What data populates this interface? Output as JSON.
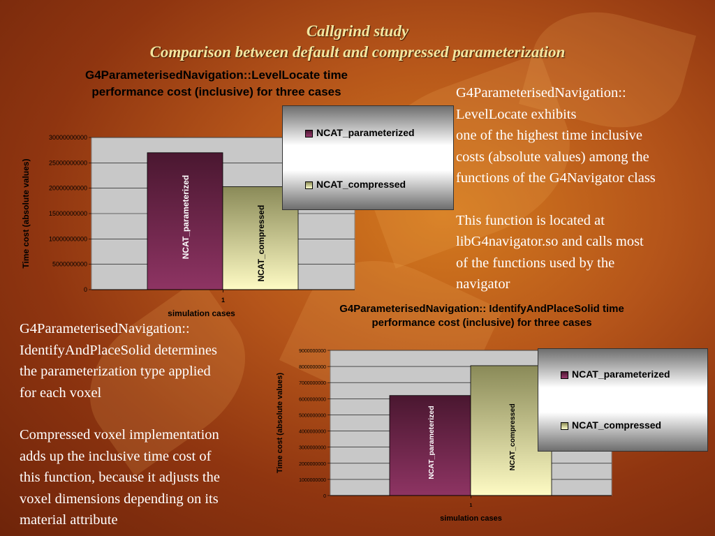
{
  "slide": {
    "title_line1": "Callgrind study",
    "title_line2": "Comparison between default and compressed parameterization",
    "right_text": {
      "p1": [
        "G4ParameterisedNavigation::",
        "LevelLocate exhibits",
        "one of the highest time inclusive",
        "costs (absolute values) among the",
        "functions of the G4Navigator class"
      ],
      "p2": [
        "This function is located at",
        "libG4navigator.so and calls most",
        "of the functions used by the",
        "navigator"
      ]
    },
    "left_text": {
      "p1": [
        "G4ParameterisedNavigation::",
        "IdentifyAndPlaceSolid determines",
        "the parameterization type applied",
        "for each voxel"
      ],
      "p2": [
        "Compressed voxel implementation",
        "adds up the inclusive time cost of",
        "this function, because it adjusts the",
        "voxel dimensions depending on its",
        "material attribute"
      ]
    }
  },
  "colors": {
    "parameterized": "#8e3463",
    "compressed": "#fefbc4",
    "plot_bg": "#c8c8c8"
  },
  "chart_data": [
    {
      "type": "bar",
      "title_line1": "G4ParameterisedNavigation::LevelLocate time",
      "title_line2": "performance cost (inclusive) for three cases",
      "xlabel": "simulation cases",
      "ylabel": "Time cost (absolute values)",
      "categories": [
        "1"
      ],
      "ylim": [
        0,
        30000000000
      ],
      "yticks": [
        0,
        5000000000,
        10000000000,
        15000000000,
        20000000000,
        25000000000,
        30000000000
      ],
      "series": [
        {
          "name": "NCAT_parameterized",
          "values": [
            27000000000
          ]
        },
        {
          "name": "NCAT_compressed",
          "values": [
            20300000000
          ]
        }
      ],
      "legend": "top-right",
      "grid": true
    },
    {
      "type": "bar",
      "title_line1": "G4ParameterisedNavigation:: IdentifyAndPlaceSolid time",
      "title_line2": "performance cost (inclusive) for three cases",
      "xlabel": "simulation cases",
      "ylabel": "Time cost (absolute values)",
      "categories": [
        "1"
      ],
      "ylim": [
        0,
        9000000000
      ],
      "yticks": [
        0,
        1000000000,
        2000000000,
        3000000000,
        4000000000,
        5000000000,
        6000000000,
        7000000000,
        8000000000,
        9000000000
      ],
      "series": [
        {
          "name": "NCAT_parameterized",
          "values": [
            6200000000
          ]
        },
        {
          "name": "NCAT_compressed",
          "values": [
            8050000000
          ]
        }
      ],
      "legend": "top-right",
      "grid": true
    }
  ]
}
